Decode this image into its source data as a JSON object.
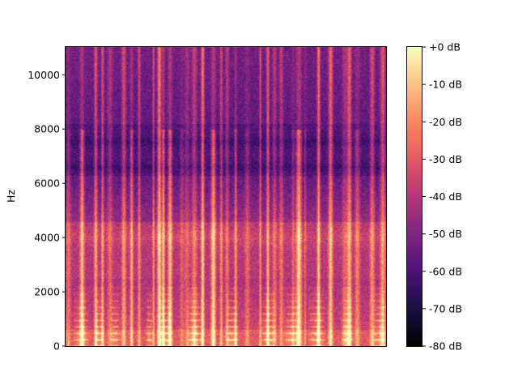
{
  "chart_data": {
    "type": "heatmap",
    "title": "",
    "xlabel": "",
    "ylabel": "Hz",
    "ylim": [
      0,
      11025
    ],
    "y_ticks": [
      0,
      2000,
      4000,
      6000,
      8000,
      10000
    ],
    "y_tick_labels": [
      "0",
      "2000",
      "4000",
      "6000",
      "8000",
      "10000"
    ],
    "x_ticks": [],
    "colormap": "magma",
    "colorbar": {
      "range": [
        -80,
        0
      ],
      "ticks": [
        0,
        -10,
        -20,
        -30,
        -40,
        -50,
        -60,
        -70,
        -80
      ],
      "tick_labels": [
        "+0 dB",
        "-10 dB",
        "-20 dB",
        "-30 dB",
        "-40 dB",
        "-50 dB",
        "-60 dB",
        "-70 dB",
        "-80 dB"
      ]
    },
    "grid": false,
    "colors": {
      "magma_stops": [
        "#000004",
        "#1c1044",
        "#4f127b",
        "#812581",
        "#b5367a",
        "#e55964",
        "#fb8761",
        "#fec287",
        "#fcfdbf"
      ],
      "axis": "#000000"
    }
  }
}
